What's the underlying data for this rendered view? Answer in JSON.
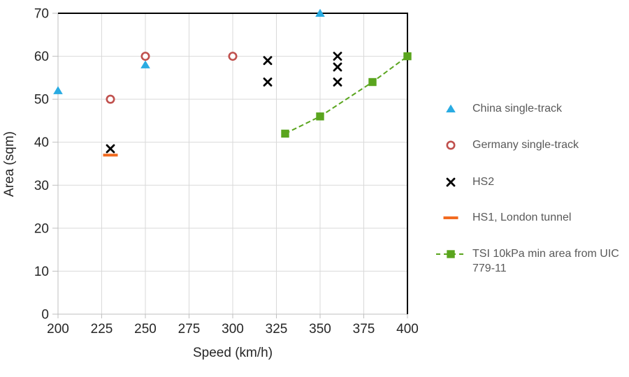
{
  "chart_data": {
    "type": "scatter",
    "title": "",
    "xlabel": "Speed (km/h)",
    "ylabel": "Area (sqm)",
    "xlim": [
      200,
      400
    ],
    "ylim": [
      0,
      70
    ],
    "xticks": [
      200,
      225,
      250,
      275,
      300,
      325,
      350,
      375,
      400
    ],
    "yticks": [
      0,
      10,
      20,
      30,
      40,
      50,
      60,
      70
    ],
    "grid": true,
    "legend_position": "right",
    "series": [
      {
        "name": "China single-track",
        "marker": "triangle",
        "color": "#29ABE2",
        "line": "none",
        "points": [
          [
            200,
            52
          ],
          [
            250,
            58
          ],
          [
            350,
            70
          ]
        ]
      },
      {
        "name": "Germany single-track",
        "marker": "circle-open",
        "color": "#C0504D",
        "line": "none",
        "points": [
          [
            230,
            50
          ],
          [
            250,
            60
          ],
          [
            300,
            60
          ]
        ]
      },
      {
        "name": "HS2",
        "marker": "x",
        "color": "#000000",
        "line": "none",
        "points": [
          [
            230,
            38.5
          ],
          [
            320,
            54
          ],
          [
            320,
            59
          ],
          [
            360,
            54
          ],
          [
            360,
            57.5
          ],
          [
            360,
            60
          ]
        ]
      },
      {
        "name": "HS1, London tunnel",
        "marker": "dash",
        "color": "#F26B21",
        "line": "none",
        "points": [
          [
            230,
            37
          ]
        ]
      },
      {
        "name": "TSI 10kPa min area from UIC 779-11",
        "marker": "square",
        "color": "#5AA51E",
        "line": "dashed",
        "points": [
          [
            330,
            42
          ],
          [
            350,
            46
          ],
          [
            380,
            54
          ],
          [
            400,
            60
          ]
        ]
      }
    ]
  },
  "style": {
    "background": "#FFFFFF",
    "grid_color": "#D9D9D9",
    "axis_color": "#BFBFBF",
    "plot_border_color": "#000000",
    "tick_text_color": "#262626",
    "legend_text_color": "#595959"
  }
}
